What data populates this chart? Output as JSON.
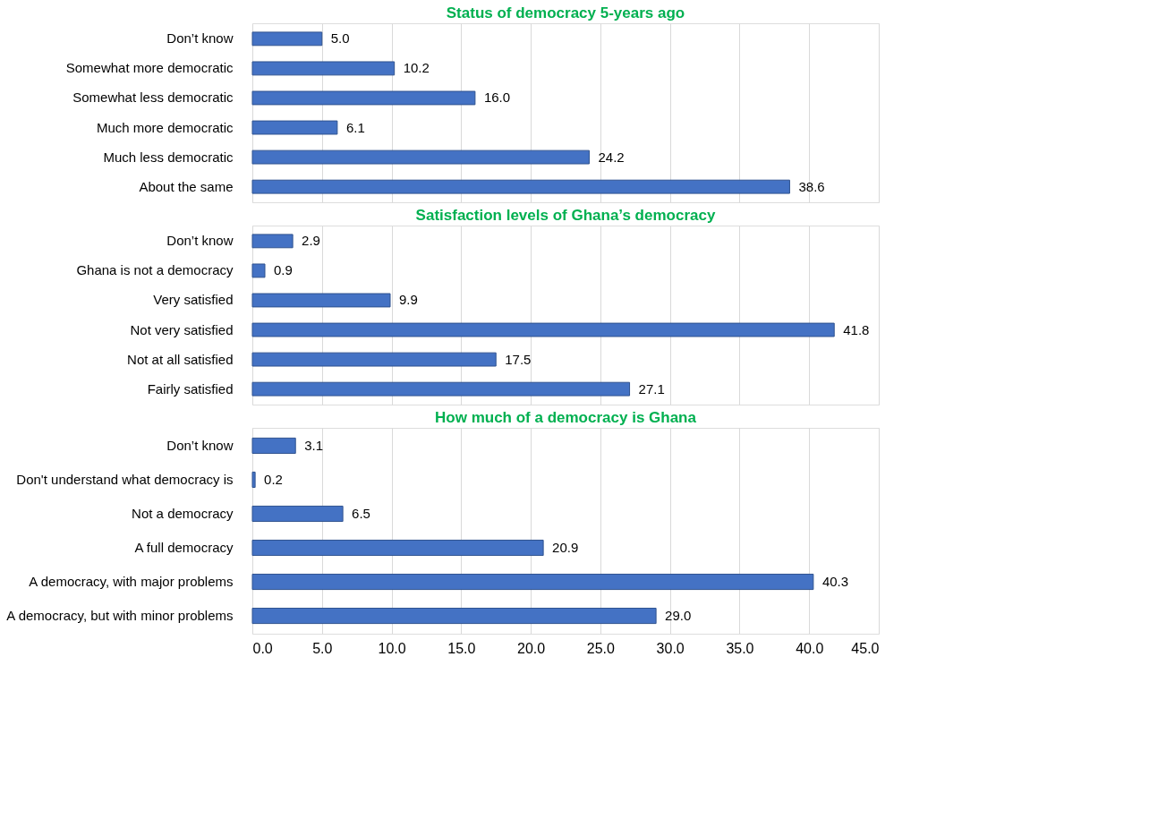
{
  "chart_data": [
    {
      "type": "bar",
      "orientation": "horizontal",
      "title": "Status of democracy 5-years ago",
      "categories": [
        "Don’t know",
        "Somewhat more democratic",
        "Somewhat less democratic",
        "Much more democratic",
        "Much less democratic",
        "About the same"
      ],
      "values": [
        5.0,
        10.2,
        16.0,
        6.1,
        24.2,
        38.6
      ],
      "value_labels": [
        "5.0",
        "10.2",
        "16.0",
        "6.1",
        "24.2",
        "38.6"
      ],
      "color": "#4472c4",
      "xlim": [
        0,
        45
      ],
      "xticks": [
        0,
        5,
        10,
        15,
        20,
        25,
        30,
        35,
        40,
        45
      ],
      "grid": "x",
      "tick_labels": "y"
    },
    {
      "type": "bar",
      "orientation": "horizontal",
      "title": "Satisfaction levels of Ghana’s democracy",
      "categories": [
        "Don’t know",
        "Ghana is not a democracy",
        "Very satisfied",
        "Not very satisfied",
        "Not at all satisfied",
        "Fairly satisfied"
      ],
      "values": [
        2.9,
        0.9,
        9.9,
        41.8,
        17.5,
        27.1
      ],
      "value_labels": [
        "2.9",
        "0.9",
        "9.9",
        "41.8",
        "17.5",
        "27.1"
      ],
      "color": "#4472c4",
      "xlim": [
        0,
        45
      ],
      "xticks": [
        0,
        5,
        10,
        15,
        20,
        25,
        30,
        35,
        40,
        45
      ],
      "grid": "x",
      "tick_labels": "y"
    },
    {
      "type": "bar",
      "orientation": "horizontal",
      "title": "How much of a democracy is Ghana",
      "categories": [
        "Don’t know",
        "Don't understand what democracy is",
        "Not a democracy",
        "A full democracy",
        "A democracy, with major problems",
        "A democracy, but with minor problems"
      ],
      "values": [
        3.1,
        0.2,
        6.5,
        20.9,
        40.3,
        29.0
      ],
      "value_labels": [
        "3.1",
        "0.2",
        "6.5",
        "20.9",
        "40.3",
        "29.0"
      ],
      "color": "#4472c4",
      "xlim": [
        0,
        45
      ],
      "xticks": [
        {
          "value": 0,
          "label": "0.0"
        },
        {
          "value": 5,
          "label": "5.0"
        },
        {
          "value": 10,
          "label": "10.0"
        },
        {
          "value": 15,
          "label": "15.0"
        },
        {
          "value": 20,
          "label": "20.0"
        },
        {
          "value": 25,
          "label": "25.0"
        },
        {
          "value": 30,
          "label": "30.0"
        },
        {
          "value": 35,
          "label": "35.0"
        },
        {
          "value": 40,
          "label": "40.0"
        },
        {
          "value": 45,
          "label": "45.0"
        }
      ],
      "grid": "x"
    }
  ]
}
